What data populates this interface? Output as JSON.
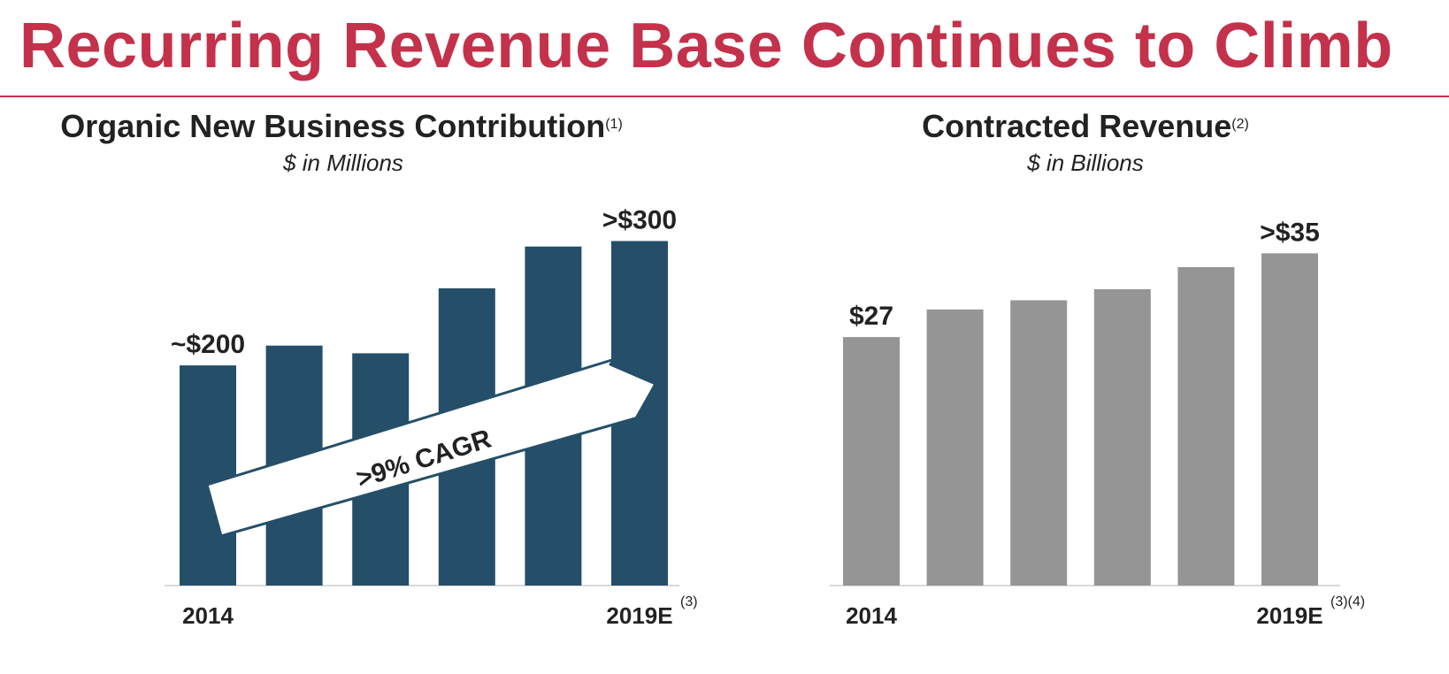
{
  "page": {
    "title": "Recurring Revenue Base Continues to Climb"
  },
  "chart_data": [
    {
      "type": "bar",
      "title": "Organic New Business Contribution",
      "title_footnote": "(1)",
      "subtitle": "$ in Millions",
      "categories": [
        "2014",
        "",
        "",
        "",
        "",
        "2019E"
      ],
      "last_category_footnote": "(3)",
      "values": [
        200,
        218,
        211,
        270,
        308,
        313
      ],
      "data_labels": [
        "~$200",
        "",
        "",
        "",
        "",
        ">$300"
      ],
      "ylim": [
        0,
        360
      ],
      "annotation": ">9% CAGR",
      "color": "#254f68",
      "grid": false
    },
    {
      "type": "bar",
      "title": "Contracted Revenue",
      "title_footnote": "(2)",
      "subtitle": "$ in Billions",
      "categories": [
        "2014",
        "",
        "",
        "",
        "",
        "2019E"
      ],
      "last_category_footnote": "(3)(4)",
      "values": [
        27,
        30,
        31,
        32.2,
        34.6,
        36.1
      ],
      "data_labels": [
        "$27",
        "",
        "",
        "",
        "",
        ">$35"
      ],
      "ylim": [
        0,
        42
      ],
      "color": "#959595",
      "grid": false
    }
  ]
}
